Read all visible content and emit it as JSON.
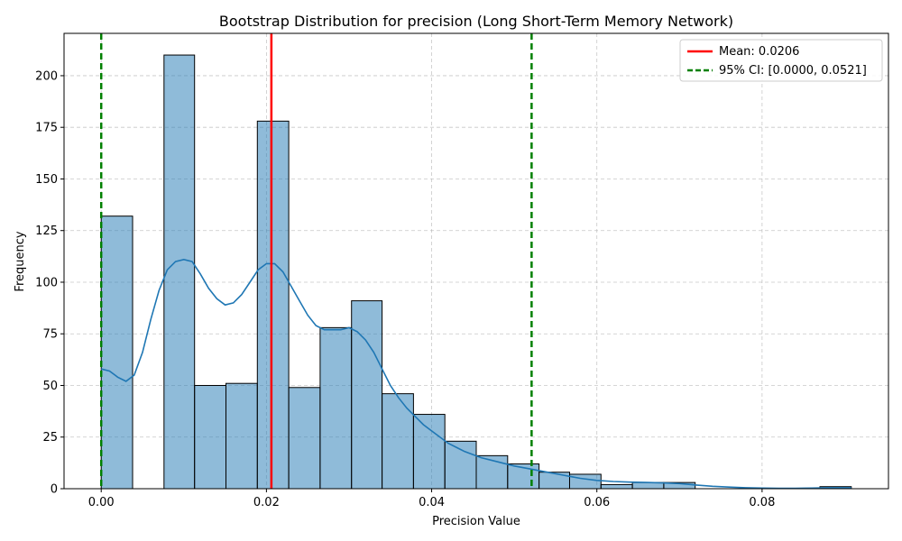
{
  "chart_data": {
    "type": "histogram",
    "title": "Bootstrap Distribution for precision (Long Short-Term Memory Network)",
    "xlabel": "Precision Value",
    "ylabel": "Frequency",
    "xlim": [
      -0.0045,
      0.0953
    ],
    "ylim": [
      0,
      220.5
    ],
    "xticks": [
      0.0,
      0.02,
      0.04,
      0.06,
      0.08
    ],
    "xtick_labels": [
      "0.00",
      "0.02",
      "0.04",
      "0.06",
      "0.08"
    ],
    "yticks": [
      0,
      25,
      50,
      75,
      100,
      125,
      150,
      175,
      200
    ],
    "ytick_labels": [
      "0",
      "25",
      "50",
      "75",
      "100",
      "125",
      "150",
      "175",
      "200"
    ],
    "grid": true,
    "bins": [
      {
        "x0": 0.0,
        "x1": 0.0038,
        "count": 132
      },
      {
        "x0": 0.0038,
        "x1": 0.0076,
        "count": 0
      },
      {
        "x0": 0.0076,
        "x1": 0.0113,
        "count": 210
      },
      {
        "x0": 0.0113,
        "x1": 0.0151,
        "count": 50
      },
      {
        "x0": 0.0151,
        "x1": 0.0189,
        "count": 51
      },
      {
        "x0": 0.0189,
        "x1": 0.0227,
        "count": 178
      },
      {
        "x0": 0.0227,
        "x1": 0.0265,
        "count": 49
      },
      {
        "x0": 0.0265,
        "x1": 0.0303,
        "count": 78
      },
      {
        "x0": 0.0303,
        "x1": 0.034,
        "count": 91
      },
      {
        "x0": 0.034,
        "x1": 0.0378,
        "count": 46
      },
      {
        "x0": 0.0378,
        "x1": 0.0416,
        "count": 36
      },
      {
        "x0": 0.0416,
        "x1": 0.0454,
        "count": 23
      },
      {
        "x0": 0.0454,
        "x1": 0.0492,
        "count": 16
      },
      {
        "x0": 0.0492,
        "x1": 0.053,
        "count": 12
      },
      {
        "x0": 0.053,
        "x1": 0.0567,
        "count": 8
      },
      {
        "x0": 0.0567,
        "x1": 0.0605,
        "count": 7
      },
      {
        "x0": 0.0605,
        "x1": 0.0643,
        "count": 2
      },
      {
        "x0": 0.0643,
        "x1": 0.0681,
        "count": 3
      },
      {
        "x0": 0.0681,
        "x1": 0.0719,
        "count": 3
      },
      {
        "x0": 0.0719,
        "x1": 0.0757,
        "count": 0
      },
      {
        "x0": 0.0757,
        "x1": 0.0794,
        "count": 0
      },
      {
        "x0": 0.0794,
        "x1": 0.0832,
        "count": 0
      },
      {
        "x0": 0.0832,
        "x1": 0.087,
        "count": 0
      },
      {
        "x0": 0.087,
        "x1": 0.0908,
        "count": 1
      }
    ],
    "kde": [
      [
        0.0,
        58
      ],
      [
        0.001,
        57
      ],
      [
        0.002,
        54
      ],
      [
        0.003,
        52
      ],
      [
        0.004,
        55
      ],
      [
        0.005,
        66
      ],
      [
        0.006,
        82
      ],
      [
        0.007,
        96
      ],
      [
        0.008,
        106
      ],
      [
        0.009,
        110
      ],
      [
        0.01,
        111
      ],
      [
        0.011,
        110
      ],
      [
        0.012,
        104
      ],
      [
        0.013,
        97
      ],
      [
        0.014,
        92
      ],
      [
        0.015,
        89
      ],
      [
        0.016,
        90
      ],
      [
        0.017,
        94
      ],
      [
        0.018,
        100
      ],
      [
        0.019,
        106
      ],
      [
        0.02,
        109
      ],
      [
        0.021,
        109
      ],
      [
        0.022,
        105
      ],
      [
        0.023,
        98
      ],
      [
        0.024,
        91
      ],
      [
        0.025,
        84
      ],
      [
        0.026,
        79
      ],
      [
        0.027,
        77
      ],
      [
        0.028,
        77
      ],
      [
        0.029,
        77
      ],
      [
        0.03,
        78
      ],
      [
        0.031,
        76
      ],
      [
        0.032,
        72
      ],
      [
        0.033,
        66
      ],
      [
        0.034,
        58
      ],
      [
        0.035,
        50
      ],
      [
        0.036,
        44
      ],
      [
        0.037,
        39
      ],
      [
        0.038,
        35
      ],
      [
        0.039,
        31
      ],
      [
        0.04,
        28
      ],
      [
        0.042,
        22
      ],
      [
        0.044,
        18
      ],
      [
        0.046,
        15
      ],
      [
        0.048,
        13
      ],
      [
        0.05,
        11
      ],
      [
        0.052,
        9.5
      ],
      [
        0.054,
        8
      ],
      [
        0.056,
        6.5
      ],
      [
        0.058,
        5
      ],
      [
        0.06,
        4
      ],
      [
        0.062,
        3.5
      ],
      [
        0.064,
        3.2
      ],
      [
        0.066,
        3
      ],
      [
        0.068,
        2.8
      ],
      [
        0.07,
        2.5
      ],
      [
        0.072,
        1.8
      ],
      [
        0.074,
        1.2
      ],
      [
        0.076,
        0.8
      ],
      [
        0.078,
        0.5
      ],
      [
        0.08,
        0.3
      ],
      [
        0.082,
        0.2
      ],
      [
        0.084,
        0.2
      ],
      [
        0.086,
        0.3
      ],
      [
        0.088,
        0.5
      ],
      [
        0.09,
        0.5
      ],
      [
        0.0908,
        0.4
      ]
    ],
    "mean_line": {
      "x": 0.0206,
      "label": "Mean: 0.0206",
      "color": "#ff0000"
    },
    "ci_lines": {
      "x": [
        0.0,
        0.0521
      ],
      "label": "95% CI: [0.0000, 0.0521]",
      "color": "#008000"
    },
    "bar_color": "#1f77b4",
    "kde_color": "#1f77b4",
    "legend_position": "top-right"
  }
}
